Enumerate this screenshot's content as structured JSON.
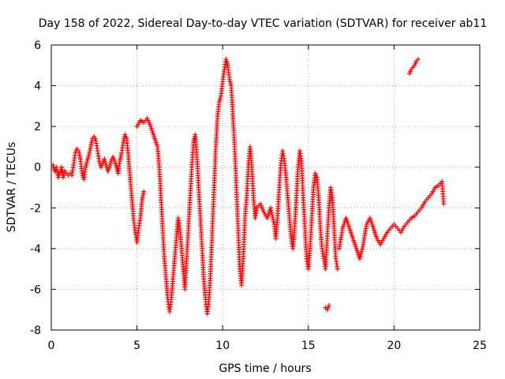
{
  "chart_data": {
    "type": "scatter",
    "title": "Day 158 of 2022, Sidereal Day-to-day VTEC variation (SDTVAR) for receiver ab11",
    "xlabel": "GPS time / hours",
    "ylabel": "SDTVAR / TECUs",
    "xlim": [
      0,
      25
    ],
    "ylim": [
      -8,
      6
    ],
    "xticks": [
      0,
      5,
      10,
      15,
      20,
      25
    ],
    "yticks": [
      -8,
      -6,
      -4,
      -2,
      0,
      2,
      4,
      6
    ],
    "grid": true,
    "marker": "+",
    "series": [
      {
        "name": "SDTVAR",
        "color": "#ff0000",
        "points": [
          [
            0.1,
            0.1
          ],
          [
            0.2,
            -0.2
          ],
          [
            0.3,
            0.0
          ],
          [
            0.4,
            -0.5
          ],
          [
            0.5,
            -0.3
          ],
          [
            0.6,
            0.0
          ],
          [
            0.7,
            -0.5
          ],
          [
            0.8,
            -0.2
          ],
          [
            0.9,
            -0.3
          ],
          [
            1.0,
            -0.4
          ],
          [
            1.1,
            -0.3
          ],
          [
            1.2,
            -0.4
          ],
          [
            1.3,
            0.1
          ],
          [
            1.4,
            0.7
          ],
          [
            1.5,
            0.9
          ],
          [
            1.6,
            0.8
          ],
          [
            1.7,
            0.4
          ],
          [
            1.8,
            -0.3
          ],
          [
            1.9,
            -0.6
          ],
          [
            2.0,
            0.0
          ],
          [
            2.1,
            0.3
          ],
          [
            2.2,
            0.6
          ],
          [
            2.3,
            1.0
          ],
          [
            2.4,
            1.4
          ],
          [
            2.5,
            1.5
          ],
          [
            2.6,
            1.3
          ],
          [
            2.7,
            0.8
          ],
          [
            2.8,
            0.3
          ],
          [
            2.9,
            0.0
          ],
          [
            3.0,
            0.2
          ],
          [
            3.1,
            0.4
          ],
          [
            3.2,
            0.1
          ],
          [
            3.3,
            -0.2
          ],
          [
            3.4,
            0.0
          ],
          [
            3.5,
            0.3
          ],
          [
            3.6,
            0.5
          ],
          [
            3.7,
            0.3
          ],
          [
            3.8,
            0.0
          ],
          [
            3.9,
            -0.3
          ],
          [
            4.0,
            0.3
          ],
          [
            4.1,
            0.7
          ],
          [
            4.2,
            1.2
          ],
          [
            4.3,
            1.6
          ],
          [
            4.4,
            1.4
          ],
          [
            4.5,
            0.5
          ],
          [
            4.6,
            -0.5
          ],
          [
            4.7,
            -1.5
          ],
          [
            4.8,
            -2.5
          ],
          [
            4.9,
            -3.2
          ],
          [
            5.0,
            -3.7
          ],
          [
            5.1,
            -3.0
          ],
          [
            5.2,
            -2.5
          ],
          [
            5.3,
            -1.6
          ],
          [
            5.4,
            -1.2
          ],
          [
            5.0,
            2.0
          ],
          [
            5.2,
            2.3
          ],
          [
            5.4,
            2.2
          ],
          [
            5.6,
            2.4
          ],
          [
            5.8,
            2.0
          ],
          [
            6.0,
            1.5
          ],
          [
            6.2,
            1.0
          ],
          [
            6.3,
            0.0
          ],
          [
            6.4,
            -1.5
          ],
          [
            6.5,
            -3.0
          ],
          [
            6.6,
            -4.5
          ],
          [
            6.7,
            -5.5
          ],
          [
            6.8,
            -6.5
          ],
          [
            6.9,
            -7.1
          ],
          [
            7.0,
            -6.5
          ],
          [
            7.1,
            -5.5
          ],
          [
            7.2,
            -4.5
          ],
          [
            7.3,
            -3.5
          ],
          [
            7.4,
            -2.5
          ],
          [
            7.5,
            -3.0
          ],
          [
            7.6,
            -4.0
          ],
          [
            7.7,
            -5.0
          ],
          [
            7.8,
            -6.0
          ],
          [
            7.9,
            -4.5
          ],
          [
            8.0,
            -3.0
          ],
          [
            8.1,
            -1.5
          ],
          [
            8.2,
            0.0
          ],
          [
            8.3,
            1.2
          ],
          [
            8.4,
            1.6
          ],
          [
            8.5,
            0.5
          ],
          [
            8.6,
            -1.0
          ],
          [
            8.7,
            -2.5
          ],
          [
            8.8,
            -4.0
          ],
          [
            8.9,
            -5.5
          ],
          [
            9.0,
            -6.5
          ],
          [
            9.1,
            -7.2
          ],
          [
            9.2,
            -6.5
          ],
          [
            9.3,
            -5.0
          ],
          [
            9.4,
            -3.0
          ],
          [
            9.5,
            -1.0
          ],
          [
            9.6,
            1.0
          ],
          [
            9.7,
            2.5
          ],
          [
            9.8,
            3.2
          ],
          [
            9.9,
            3.5
          ],
          [
            10.0,
            4.2
          ],
          [
            10.1,
            4.8
          ],
          [
            10.2,
            5.3
          ],
          [
            10.3,
            5.0
          ],
          [
            10.4,
            4.3
          ],
          [
            10.5,
            4.0
          ],
          [
            10.6,
            2.5
          ],
          [
            10.7,
            1.0
          ],
          [
            10.8,
            -1.0
          ],
          [
            10.9,
            -3.0
          ],
          [
            11.0,
            -5.0
          ],
          [
            11.1,
            -5.8
          ],
          [
            11.2,
            -4.5
          ],
          [
            11.3,
            -2.5
          ],
          [
            11.4,
            -1.5
          ],
          [
            11.5,
            0.0
          ],
          [
            11.6,
            1.0
          ],
          [
            11.7,
            0.0
          ],
          [
            11.8,
            -1.5
          ],
          [
            11.9,
            -2.5
          ],
          [
            12.0,
            -2.0
          ],
          [
            12.2,
            -1.8
          ],
          [
            12.4,
            -2.2
          ],
          [
            12.6,
            -2.5
          ],
          [
            12.8,
            -2.0
          ],
          [
            13.0,
            -2.8
          ],
          [
            13.1,
            -3.5
          ],
          [
            13.2,
            -2.5
          ],
          [
            13.3,
            -1.0
          ],
          [
            13.4,
            0.2
          ],
          [
            13.5,
            0.8
          ],
          [
            13.6,
            0.3
          ],
          [
            13.7,
            -0.5
          ],
          [
            13.8,
            -1.5
          ],
          [
            13.9,
            -2.5
          ],
          [
            14.0,
            -3.5
          ],
          [
            14.1,
            -4.0
          ],
          [
            14.2,
            -3.0
          ],
          [
            14.3,
            -1.5
          ],
          [
            14.4,
            0.0
          ],
          [
            14.5,
            0.8
          ],
          [
            14.6,
            0.3
          ],
          [
            14.7,
            -1.5
          ],
          [
            14.8,
            -3.0
          ],
          [
            14.9,
            -4.5
          ],
          [
            15.0,
            -5.0
          ],
          [
            15.1,
            -4.0
          ],
          [
            15.2,
            -2.5
          ],
          [
            15.3,
            -1.0
          ],
          [
            15.4,
            -0.3
          ],
          [
            15.5,
            -0.5
          ],
          [
            15.6,
            -1.5
          ],
          [
            15.7,
            -3.0
          ],
          [
            15.8,
            -4.0
          ],
          [
            15.9,
            -4.5
          ],
          [
            16.0,
            -5.0
          ],
          [
            16.1,
            -3.5
          ],
          [
            16.2,
            -2.0
          ],
          [
            16.3,
            -1.0
          ],
          [
            16.4,
            -1.5
          ],
          [
            16.5,
            -3.0
          ],
          [
            16.6,
            -4.5
          ],
          [
            16.7,
            -5.0
          ],
          [
            16.0,
            -6.9
          ],
          [
            16.1,
            -7.0
          ],
          [
            16.2,
            -6.8
          ],
          [
            16.8,
            -4.0
          ],
          [
            17.0,
            -3.0
          ],
          [
            17.2,
            -2.5
          ],
          [
            17.4,
            -3.0
          ],
          [
            17.6,
            -3.5
          ],
          [
            17.8,
            -4.0
          ],
          [
            18.0,
            -4.5
          ],
          [
            18.2,
            -3.8
          ],
          [
            18.4,
            -2.8
          ],
          [
            18.6,
            -2.5
          ],
          [
            18.8,
            -3.0
          ],
          [
            19.0,
            -3.5
          ],
          [
            19.2,
            -3.8
          ],
          [
            19.4,
            -3.5
          ],
          [
            19.6,
            -3.2
          ],
          [
            19.8,
            -3.0
          ],
          [
            20.0,
            -2.8
          ],
          [
            20.2,
            -3.0
          ],
          [
            20.4,
            -3.2
          ],
          [
            20.6,
            -2.9
          ],
          [
            20.8,
            -2.7
          ],
          [
            21.0,
            -2.5
          ],
          [
            21.2,
            -2.4
          ],
          [
            21.4,
            -2.2
          ],
          [
            21.6,
            -2.0
          ],
          [
            21.8,
            -1.7
          ],
          [
            22.0,
            -1.5
          ],
          [
            22.2,
            -1.3
          ],
          [
            22.4,
            -1.0
          ],
          [
            22.6,
            -0.9
          ],
          [
            22.8,
            -0.7
          ],
          [
            22.9,
            -1.8
          ],
          [
            20.9,
            4.6
          ],
          [
            21.0,
            4.8
          ],
          [
            21.1,
            4.9
          ],
          [
            21.2,
            5.0
          ],
          [
            21.3,
            5.2
          ],
          [
            21.4,
            5.3
          ]
        ]
      }
    ]
  }
}
